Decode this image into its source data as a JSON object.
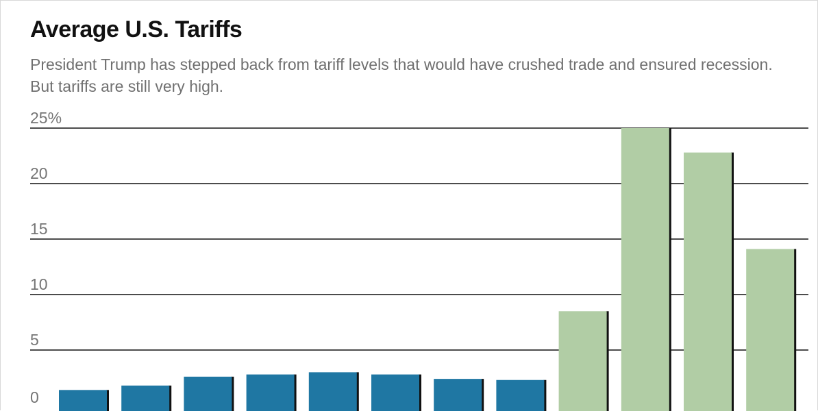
{
  "chart_data": {
    "type": "bar",
    "title": "Average U.S. Tariffs",
    "subtitle": "President Trump has stepped back from tariff levels that would have crushed trade and ensured recession. But tariffs are still very high.",
    "categories": [
      "",
      "",
      "",
      "",
      "",
      "",
      "",
      "",
      "",
      "",
      "",
      ""
    ],
    "values": [
      1.4,
      1.8,
      2.6,
      2.8,
      3.0,
      2.8,
      2.4,
      2.3,
      8.5,
      25.0,
      22.8,
      14.1
    ],
    "bar_colors": [
      "#1f77a3",
      "#1f77a3",
      "#1f77a3",
      "#1f77a3",
      "#1f77a3",
      "#1f77a3",
      "#1f77a3",
      "#1f77a3",
      "#b1cda5",
      "#b1cda5",
      "#b1cda5",
      "#b1cda5"
    ],
    "shadow_color": "#111111",
    "gridline_color": "#111111",
    "ylim": [
      0,
      25
    ],
    "yticks": [
      0,
      5,
      10,
      15,
      20,
      25
    ],
    "ytick_labels": [
      "0",
      "5",
      "10",
      "15",
      "20",
      "25%"
    ],
    "xlabel": "",
    "ylabel": "",
    "grid": true
  }
}
